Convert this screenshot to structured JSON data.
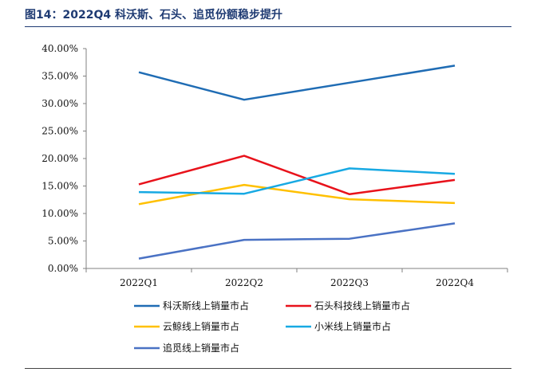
{
  "figure": {
    "title": "图14：2022Q4 科沃斯、石头、追觅份额稳步提升"
  },
  "chart_data": {
    "type": "line",
    "categories": [
      "2022Q1",
      "2022Q2",
      "2022Q3",
      "2022Q4"
    ],
    "ylim": [
      0,
      0.4
    ],
    "yticks": [
      "0.00%",
      "5.00%",
      "10.00%",
      "15.00%",
      "20.00%",
      "25.00%",
      "30.00%",
      "35.00%",
      "40.00%"
    ],
    "grid": false,
    "legend": "bottom",
    "series": [
      {
        "name": "科沃斯线上销量市占",
        "color": "#1f6cb4",
        "values": [
          0.357,
          0.307,
          0.338,
          0.369
        ]
      },
      {
        "name": "石头科技线上销量市占",
        "color": "#e8121b",
        "values": [
          0.153,
          0.205,
          0.135,
          0.161
        ]
      },
      {
        "name": "云鲸线上销量市占",
        "color": "#ffc000",
        "values": [
          0.117,
          0.152,
          0.126,
          0.119
        ]
      },
      {
        "name": "小米线上销量市占",
        "color": "#17a9e3",
        "values": [
          0.139,
          0.136,
          0.182,
          0.172
        ]
      },
      {
        "name": "追觅线上销量市占",
        "color": "#4a72c4",
        "values": [
          0.018,
          0.052,
          0.054,
          0.082
        ]
      }
    ]
  }
}
